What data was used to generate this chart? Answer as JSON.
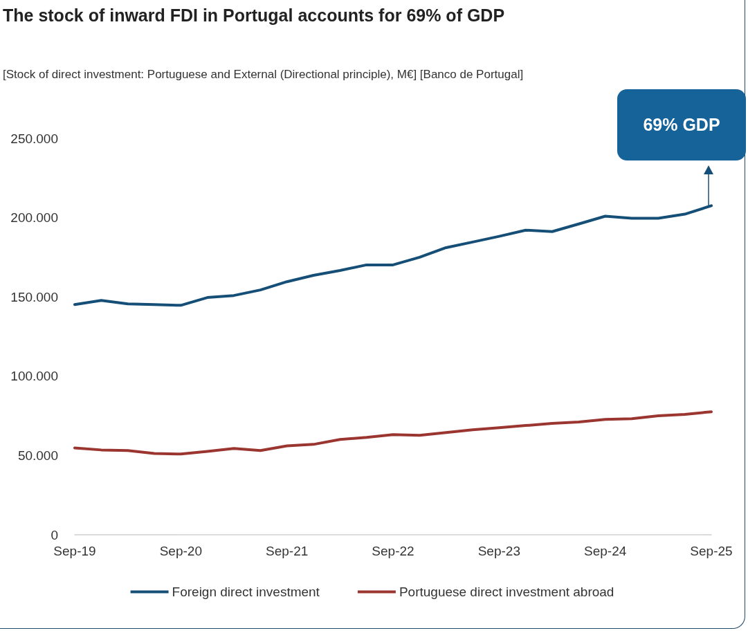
{
  "chart_data": {
    "type": "line",
    "title": "The stock of inward FDI in Portugal accounts for 69% of GDP",
    "subtitle": "[Stock of direct investment: Portuguese and External (Directional principle), M€] [Banco de Portugal]",
    "categories": [
      "Sep-19",
      null,
      null,
      null,
      "Sep-20",
      null,
      null,
      null,
      "Sep-21",
      null,
      null,
      null,
      "Sep-22",
      null,
      null,
      null,
      "Sep-23",
      null,
      null,
      null,
      "Sep-24",
      null,
      null,
      null,
      "Sep-25"
    ],
    "series": [
      {
        "name": "Foreign direct investment",
        "color": "#154f77",
        "values": [
          145200,
          147800,
          145600,
          145200,
          144700,
          149600,
          150900,
          154400,
          159600,
          163600,
          166700,
          170200,
          170200,
          175000,
          181100,
          184600,
          188200,
          192100,
          191200,
          196000,
          200900,
          199600,
          199600,
          202200,
          207500
        ]
      },
      {
        "name": "Portuguese direct investment abroad",
        "color": "#9b3530",
        "values": [
          54800,
          53500,
          53100,
          51300,
          50900,
          52600,
          54400,
          53100,
          56100,
          57000,
          60100,
          61400,
          63200,
          62700,
          64500,
          66200,
          67500,
          68900,
          70200,
          71100,
          72800,
          73200,
          75000,
          75900,
          77600
        ]
      }
    ],
    "ylim": [
      0,
      250000
    ],
    "yticks": [
      {
        "value": 0,
        "label": "0"
      },
      {
        "value": 50000,
        "label": "50.000"
      },
      {
        "value": 100000,
        "label": "100.000"
      },
      {
        "value": 150000,
        "label": "150.000"
      },
      {
        "value": 200000,
        "label": "200.000"
      },
      {
        "value": 250000,
        "label": "250.000"
      }
    ],
    "grid": false,
    "legend": "bottom",
    "marker": "none",
    "line_style": "solid",
    "annotations": [
      "69% GDP"
    ]
  }
}
